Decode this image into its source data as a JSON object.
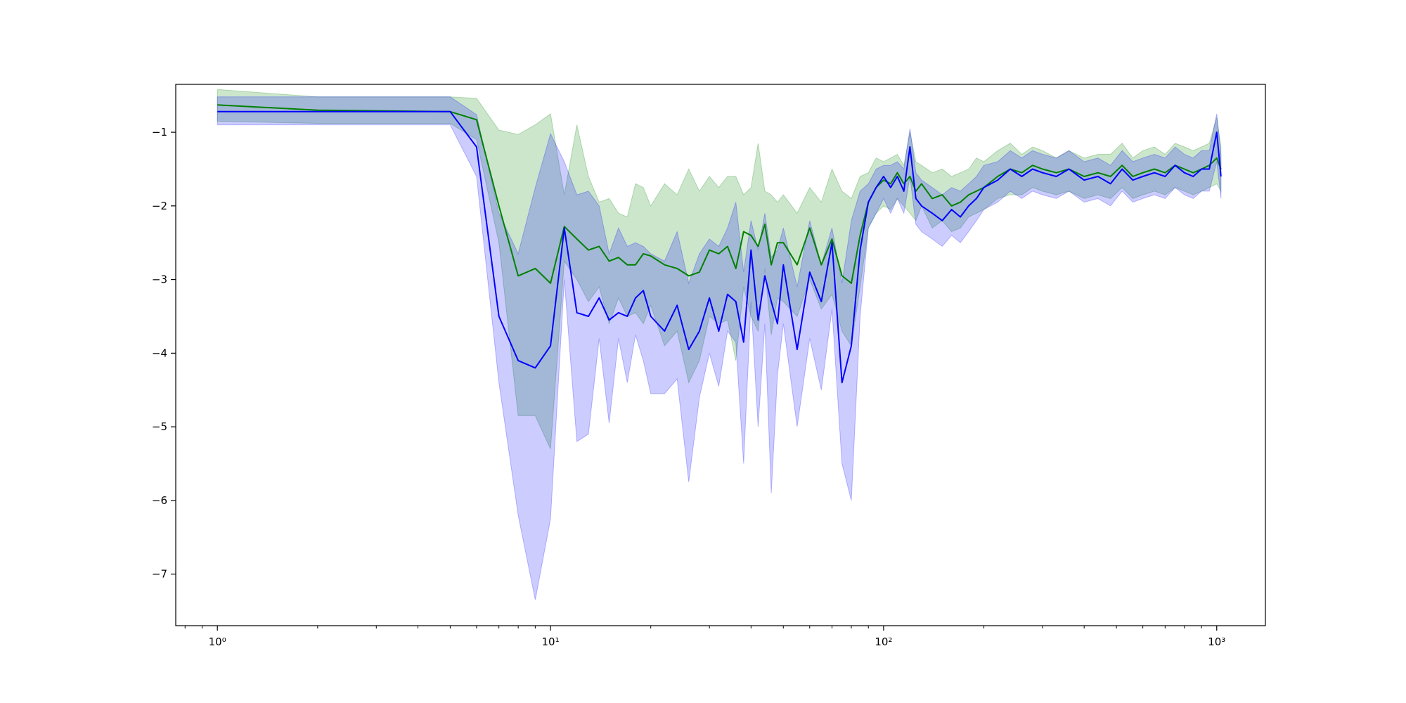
{
  "chart_data": {
    "type": "line",
    "title": "",
    "xlabel": "",
    "ylabel": "",
    "x_scale": "log",
    "xlim": [
      0.75,
      1400
    ],
    "ylim": [
      -7.7,
      -0.35
    ],
    "grid": false,
    "legend": "none",
    "x_ticks": [
      {
        "value": 1,
        "label": "10⁰"
      },
      {
        "value": 10,
        "label": "10¹"
      },
      {
        "value": 100,
        "label": "10²"
      },
      {
        "value": 1000,
        "label": "10³"
      }
    ],
    "y_ticks": [
      {
        "value": -1,
        "label": "−1"
      },
      {
        "value": -2,
        "label": "−2"
      },
      {
        "value": -3,
        "label": "−3"
      },
      {
        "value": -4,
        "label": "−4"
      },
      {
        "value": -5,
        "label": "−5"
      },
      {
        "value": -6,
        "label": "−6"
      },
      {
        "value": -7,
        "label": "−7"
      }
    ],
    "series": [
      {
        "color": "#008000",
        "band_color": "#008000",
        "band_opacity": 0.2,
        "x": [
          1,
          2,
          5,
          6,
          7,
          8,
          9,
          10,
          11,
          12,
          13,
          14,
          15,
          16,
          17,
          18,
          19,
          20,
          22,
          24,
          26,
          28,
          30,
          32,
          34,
          36,
          38,
          40,
          42,
          44,
          46,
          48,
          50,
          55,
          60,
          65,
          70,
          75,
          80,
          85,
          90,
          95,
          100,
          105,
          110,
          115,
          120,
          125,
          130,
          140,
          150,
          160,
          170,
          180,
          190,
          200,
          220,
          240,
          260,
          280,
          300,
          330,
          360,
          400,
          440,
          480,
          520,
          560,
          600,
          650,
          700,
          750,
          800,
          850,
          900,
          950,
          1000,
          1030
        ],
        "mean": [
          -0.63,
          -0.7,
          -0.72,
          -0.83,
          -2.0,
          -2.95,
          -2.85,
          -3.05,
          -2.28,
          -2.45,
          -2.6,
          -2.55,
          -2.75,
          -2.7,
          -2.8,
          -2.8,
          -2.65,
          -2.68,
          -2.8,
          -2.85,
          -2.95,
          -2.9,
          -2.6,
          -2.65,
          -2.55,
          -2.85,
          -2.35,
          -2.4,
          -2.55,
          -2.25,
          -2.8,
          -2.5,
          -2.5,
          -2.8,
          -2.3,
          -2.8,
          -2.45,
          -2.95,
          -3.05,
          -2.4,
          -1.95,
          -1.75,
          -1.65,
          -1.7,
          -1.55,
          -1.7,
          -1.6,
          -1.8,
          -1.7,
          -1.9,
          -1.85,
          -2.0,
          -1.95,
          -1.85,
          -1.8,
          -1.75,
          -1.6,
          -1.5,
          -1.55,
          -1.45,
          -1.5,
          -1.55,
          -1.5,
          -1.6,
          -1.55,
          -1.6,
          -1.45,
          -1.6,
          -1.55,
          -1.5,
          -1.55,
          -1.45,
          -1.5,
          -1.55,
          -1.5,
          -1.45,
          -1.35,
          -1.5
        ],
        "upper": [
          -0.42,
          -0.52,
          -0.52,
          -0.54,
          -0.97,
          -1.03,
          -0.9,
          -0.75,
          -1.85,
          -0.9,
          -1.6,
          -1.95,
          -1.9,
          -2.1,
          -2.15,
          -1.7,
          -1.75,
          -2.0,
          -1.7,
          -1.85,
          -1.5,
          -1.8,
          -1.6,
          -1.75,
          -1.6,
          -1.6,
          -1.85,
          -1.75,
          -1.15,
          -1.8,
          -1.85,
          -1.95,
          -1.85,
          -2.1,
          -1.75,
          -1.95,
          -1.5,
          -1.8,
          -1.9,
          -1.6,
          -1.55,
          -1.35,
          -1.4,
          -1.35,
          -1.3,
          -1.45,
          -1.0,
          -1.4,
          -1.45,
          -1.55,
          -1.5,
          -1.6,
          -1.55,
          -1.5,
          -1.35,
          -1.4,
          -1.25,
          -1.15,
          -1.3,
          -1.2,
          -1.25,
          -1.35,
          -1.25,
          -1.35,
          -1.3,
          -1.3,
          -1.15,
          -1.35,
          -1.25,
          -1.2,
          -1.3,
          -1.15,
          -1.2,
          -1.25,
          -1.2,
          -1.15,
          -0.8,
          -1.2
        ],
        "lower": [
          -0.85,
          -0.88,
          -0.88,
          -1.1,
          -2.5,
          -4.85,
          -4.85,
          -5.3,
          -2.75,
          -3.0,
          -3.3,
          -3.1,
          -3.6,
          -3.25,
          -3.5,
          -3.45,
          -3.6,
          -3.35,
          -3.9,
          -3.7,
          -4.4,
          -4.1,
          -3.5,
          -3.6,
          -3.55,
          -4.1,
          -3.1,
          -3.5,
          -3.7,
          -2.85,
          -3.75,
          -3.25,
          -3.3,
          -3.5,
          -3.0,
          -3.4,
          -3.2,
          -3.7,
          -3.9,
          -3.1,
          -2.3,
          -2.1,
          -2.0,
          -2.05,
          -1.9,
          -2.0,
          -2.1,
          -2.2,
          -2.0,
          -2.3,
          -2.2,
          -2.35,
          -2.3,
          -2.15,
          -2.1,
          -2.05,
          -1.9,
          -1.85,
          -1.85,
          -1.75,
          -1.8,
          -1.85,
          -1.8,
          -1.9,
          -1.85,
          -1.9,
          -1.75,
          -1.9,
          -1.85,
          -1.8,
          -1.85,
          -1.75,
          -1.8,
          -1.85,
          -1.8,
          -1.75,
          -1.7,
          -1.8
        ]
      },
      {
        "color": "#0000ff",
        "band_color": "#0000ff",
        "band_opacity": 0.2,
        "x": [
          1,
          2,
          5,
          6,
          7,
          8,
          9,
          10,
          11,
          12,
          13,
          14,
          15,
          16,
          17,
          18,
          19,
          20,
          22,
          24,
          26,
          28,
          30,
          32,
          34,
          36,
          38,
          40,
          42,
          44,
          46,
          48,
          50,
          55,
          60,
          65,
          70,
          75,
          80,
          85,
          90,
          95,
          100,
          105,
          110,
          115,
          120,
          125,
          130,
          140,
          150,
          160,
          170,
          180,
          190,
          200,
          220,
          240,
          260,
          280,
          300,
          330,
          360,
          400,
          440,
          480,
          520,
          560,
          600,
          650,
          700,
          750,
          800,
          850,
          900,
          950,
          1000,
          1030
        ],
        "mean": [
          -0.72,
          -0.72,
          -0.72,
          -1.2,
          -3.5,
          -4.1,
          -4.2,
          -3.9,
          -2.3,
          -3.45,
          -3.5,
          -3.25,
          -3.55,
          -3.45,
          -3.5,
          -3.25,
          -3.15,
          -3.5,
          -3.7,
          -3.35,
          -3.95,
          -3.7,
          -3.25,
          -3.7,
          -3.2,
          -3.3,
          -3.85,
          -2.6,
          -3.55,
          -2.95,
          -3.3,
          -3.6,
          -2.8,
          -3.95,
          -2.9,
          -3.3,
          -2.5,
          -4.4,
          -3.9,
          -2.6,
          -1.95,
          -1.75,
          -1.6,
          -1.75,
          -1.6,
          -1.8,
          -1.2,
          -1.9,
          -2.0,
          -2.1,
          -2.2,
          -2.05,
          -2.15,
          -2.0,
          -1.9,
          -1.75,
          -1.65,
          -1.5,
          -1.6,
          -1.5,
          -1.55,
          -1.6,
          -1.5,
          -1.65,
          -1.6,
          -1.7,
          -1.5,
          -1.65,
          -1.6,
          -1.55,
          -1.6,
          -1.45,
          -1.55,
          -1.6,
          -1.5,
          -1.5,
          -1.0,
          -1.6
        ],
        "upper": [
          -0.52,
          -0.52,
          -0.52,
          -0.76,
          -2.1,
          -2.65,
          -1.75,
          -1.02,
          -1.4,
          -1.85,
          -1.8,
          -2.0,
          -2.65,
          -2.3,
          -2.55,
          -2.5,
          -2.55,
          -2.65,
          -2.75,
          -2.35,
          -3.05,
          -2.65,
          -2.45,
          -2.55,
          -2.3,
          -1.95,
          -2.9,
          -2.2,
          -2.6,
          -2.1,
          -2.7,
          -2.6,
          -2.3,
          -3.1,
          -2.2,
          -2.8,
          -2.3,
          -3.05,
          -2.2,
          -1.8,
          -1.7,
          -1.5,
          -1.45,
          -1.45,
          -1.4,
          -1.5,
          -0.95,
          -1.55,
          -1.65,
          -1.75,
          -1.85,
          -1.75,
          -1.8,
          -1.7,
          -1.6,
          -1.45,
          -1.4,
          -1.25,
          -1.35,
          -1.25,
          -1.3,
          -1.35,
          -1.25,
          -1.4,
          -1.35,
          -1.45,
          -1.25,
          -1.4,
          -1.35,
          -1.3,
          -1.35,
          -1.2,
          -1.3,
          -1.35,
          -1.25,
          -1.25,
          -0.75,
          -1.3
        ],
        "lower": [
          -0.9,
          -0.9,
          -0.9,
          -1.6,
          -4.4,
          -6.2,
          -7.35,
          -6.25,
          -3.0,
          -5.2,
          -5.1,
          -3.8,
          -4.95,
          -3.8,
          -4.4,
          -3.75,
          -4.1,
          -4.55,
          -4.55,
          -4.35,
          -5.75,
          -4.6,
          -4.0,
          -4.45,
          -3.7,
          -3.85,
          -5.5,
          -3.3,
          -5.0,
          -3.6,
          -5.9,
          -4.3,
          -3.6,
          -5.0,
          -3.8,
          -4.5,
          -3.4,
          -5.5,
          -6.0,
          -3.5,
          -2.3,
          -2.1,
          -1.9,
          -2.1,
          -1.9,
          -2.1,
          -1.6,
          -2.25,
          -2.35,
          -2.45,
          -2.55,
          -2.4,
          -2.5,
          -2.35,
          -2.2,
          -2.05,
          -1.95,
          -1.8,
          -1.9,
          -1.8,
          -1.85,
          -1.9,
          -1.8,
          -1.95,
          -1.9,
          -2.0,
          -1.8,
          -1.95,
          -1.9,
          -1.85,
          -1.9,
          -1.75,
          -1.85,
          -1.9,
          -1.8,
          -1.8,
          -1.4,
          -1.9
        ]
      }
    ]
  }
}
